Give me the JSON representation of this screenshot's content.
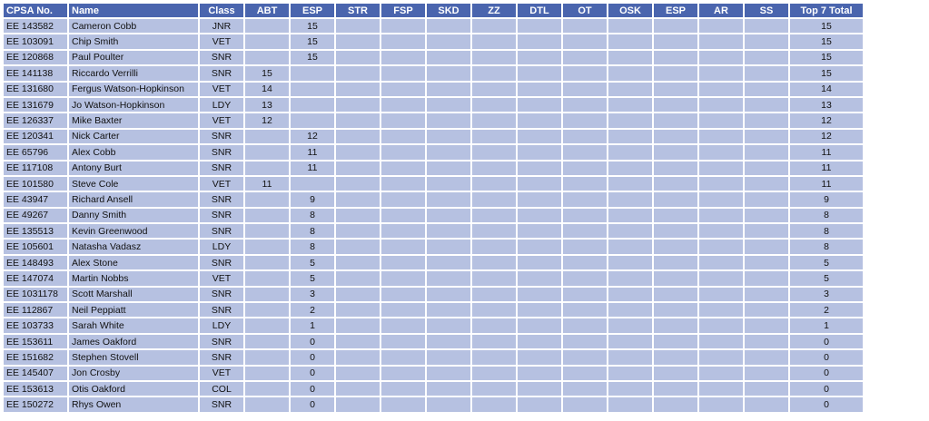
{
  "colors": {
    "header_bg": "#4a65ae",
    "cell_bg": "#b6c1e1",
    "header_text": "#ffffff"
  },
  "columns": [
    "CPSA No.",
    "Name",
    "Class",
    "ABT",
    "ESP",
    "STR",
    "FSP",
    "SKD",
    "ZZ",
    "DTL",
    "OT",
    "OSK",
    "ESP",
    "AR",
    "SS",
    "Top 7 Total"
  ],
  "rows": [
    [
      "EE 143582",
      "Cameron Cobb",
      "JNR",
      "",
      "15",
      "",
      "",
      "",
      "",
      "",
      "",
      "",
      "",
      "",
      "",
      "15"
    ],
    [
      "EE 103091",
      "Chip Smith",
      "VET",
      "",
      "15",
      "",
      "",
      "",
      "",
      "",
      "",
      "",
      "",
      "",
      "",
      "15"
    ],
    [
      "EE 120868",
      "Paul Poulter",
      "SNR",
      "",
      "15",
      "",
      "",
      "",
      "",
      "",
      "",
      "",
      "",
      "",
      "",
      "15"
    ],
    [
      "EE 141138",
      "Riccardo Verrilli",
      "SNR",
      "15",
      "",
      "",
      "",
      "",
      "",
      "",
      "",
      "",
      "",
      "",
      "",
      "15"
    ],
    [
      "EE 131680",
      "Fergus Watson-Hopkinson",
      "VET",
      "14",
      "",
      "",
      "",
      "",
      "",
      "",
      "",
      "",
      "",
      "",
      "",
      "14"
    ],
    [
      "EE 131679",
      "Jo Watson-Hopkinson",
      "LDY",
      "13",
      "",
      "",
      "",
      "",
      "",
      "",
      "",
      "",
      "",
      "",
      "",
      "13"
    ],
    [
      "EE 126337",
      "Mike Baxter",
      "VET",
      "12",
      "",
      "",
      "",
      "",
      "",
      "",
      "",
      "",
      "",
      "",
      "",
      "12"
    ],
    [
      "EE 120341",
      "Nick Carter",
      "SNR",
      "",
      "12",
      "",
      "",
      "",
      "",
      "",
      "",
      "",
      "",
      "",
      "",
      "12"
    ],
    [
      "EE 65796",
      "Alex Cobb",
      "SNR",
      "",
      "11",
      "",
      "",
      "",
      "",
      "",
      "",
      "",
      "",
      "",
      "",
      "11"
    ],
    [
      "EE 117108",
      "Antony Burt",
      "SNR",
      "",
      "11",
      "",
      "",
      "",
      "",
      "",
      "",
      "",
      "",
      "",
      "",
      "11"
    ],
    [
      "EE 101580",
      "Steve Cole",
      "VET",
      "11",
      "",
      "",
      "",
      "",
      "",
      "",
      "",
      "",
      "",
      "",
      "",
      "11"
    ],
    [
      "EE 43947",
      "Richard Ansell",
      "SNR",
      "",
      "9",
      "",
      "",
      "",
      "",
      "",
      "",
      "",
      "",
      "",
      "",
      "9"
    ],
    [
      "EE 49267",
      "Danny Smith",
      "SNR",
      "",
      "8",
      "",
      "",
      "",
      "",
      "",
      "",
      "",
      "",
      "",
      "",
      "8"
    ],
    [
      "EE 135513",
      "Kevin Greenwood",
      "SNR",
      "",
      "8",
      "",
      "",
      "",
      "",
      "",
      "",
      "",
      "",
      "",
      "",
      "8"
    ],
    [
      "EE 105601",
      "Natasha Vadasz",
      "LDY",
      "",
      "8",
      "",
      "",
      "",
      "",
      "",
      "",
      "",
      "",
      "",
      "",
      "8"
    ],
    [
      "EE 148493",
      "Alex Stone",
      "SNR",
      "",
      "5",
      "",
      "",
      "",
      "",
      "",
      "",
      "",
      "",
      "",
      "",
      "5"
    ],
    [
      "EE 147074",
      "Martin Nobbs",
      "VET",
      "",
      "5",
      "",
      "",
      "",
      "",
      "",
      "",
      "",
      "",
      "",
      "",
      "5"
    ],
    [
      "EE 1031178",
      "Scott Marshall",
      "SNR",
      "",
      "3",
      "",
      "",
      "",
      "",
      "",
      "",
      "",
      "",
      "",
      "",
      "3"
    ],
    [
      "EE 112867",
      "Neil Peppiatt",
      "SNR",
      "",
      "2",
      "",
      "",
      "",
      "",
      "",
      "",
      "",
      "",
      "",
      "",
      "2"
    ],
    [
      "EE 103733",
      "Sarah White",
      "LDY",
      "",
      "1",
      "",
      "",
      "",
      "",
      "",
      "",
      "",
      "",
      "",
      "",
      "1"
    ],
    [
      "EE 153611",
      "James Oakford",
      "SNR",
      "",
      "0",
      "",
      "",
      "",
      "",
      "",
      "",
      "",
      "",
      "",
      "",
      "0"
    ],
    [
      "EE 151682",
      "Stephen Stovell",
      "SNR",
      "",
      "0",
      "",
      "",
      "",
      "",
      "",
      "",
      "",
      "",
      "",
      "",
      "0"
    ],
    [
      "EE 145407",
      "Jon Crosby",
      "VET",
      "",
      "0",
      "",
      "",
      "",
      "",
      "",
      "",
      "",
      "",
      "",
      "",
      "0"
    ],
    [
      "EE 153613",
      "Otis Oakford",
      "COL",
      "",
      "0",
      "",
      "",
      "",
      "",
      "",
      "",
      "",
      "",
      "",
      "",
      "0"
    ],
    [
      "EE 150272",
      "Rhys Owen",
      "SNR",
      "",
      "0",
      "",
      "",
      "",
      "",
      "",
      "",
      "",
      "",
      "",
      "",
      "0"
    ]
  ]
}
